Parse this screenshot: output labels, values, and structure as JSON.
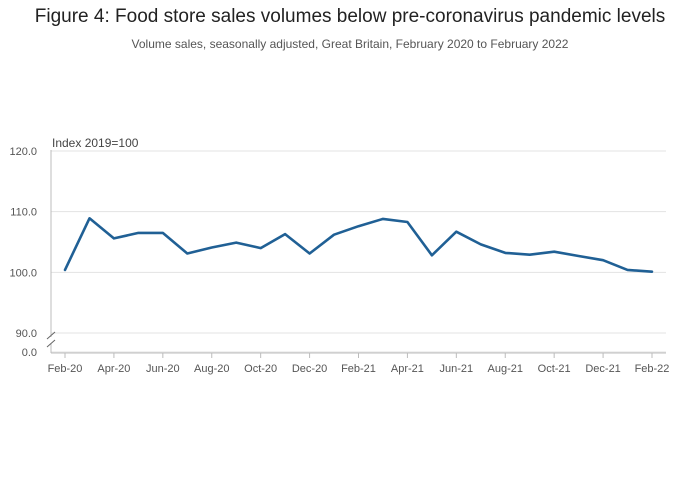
{
  "chart_data": {
    "type": "line",
    "title": "Figure 4: Food store sales volumes below pre-coronavirus pandemic levels",
    "subtitle": "Volume sales, seasonally adjusted, Great Britain, February 2020 to February 2022",
    "ylabel": "Index 2019=100",
    "xlabel": "",
    "ylim": [
      90,
      120
    ],
    "y_ticks": [
      "120.0",
      "110.0",
      "100.0",
      "90.0",
      "0.0"
    ],
    "axis_break": true,
    "x_tick_labels": [
      "Feb-20",
      "Apr-20",
      "Jun-20",
      "Aug-20",
      "Oct-20",
      "Dec-20",
      "Feb-21",
      "Apr-21",
      "Jun-21",
      "Aug-21",
      "Oct-21",
      "Dec-21",
      "Feb-22"
    ],
    "x": [
      "Feb-20",
      "Mar-20",
      "Apr-20",
      "May-20",
      "Jun-20",
      "Jul-20",
      "Aug-20",
      "Sep-20",
      "Oct-20",
      "Nov-20",
      "Dec-20",
      "Jan-21",
      "Feb-21",
      "Mar-21",
      "Apr-21",
      "May-21",
      "Jun-21",
      "Jul-21",
      "Aug-21",
      "Sep-21",
      "Oct-21",
      "Nov-21",
      "Dec-21",
      "Jan-22",
      "Feb-22"
    ],
    "series": [
      {
        "name": "Food stores",
        "color": "#206095",
        "values": [
          100.4,
          108.9,
          105.6,
          106.5,
          106.5,
          103.1,
          104.1,
          104.9,
          104.0,
          106.3,
          103.1,
          106.2,
          107.6,
          108.8,
          108.3,
          102.8,
          106.7,
          104.6,
          103.2,
          102.9,
          103.4,
          102.7,
          102.0,
          100.4,
          100.1
        ]
      }
    ],
    "grid": true,
    "legend": "none"
  }
}
